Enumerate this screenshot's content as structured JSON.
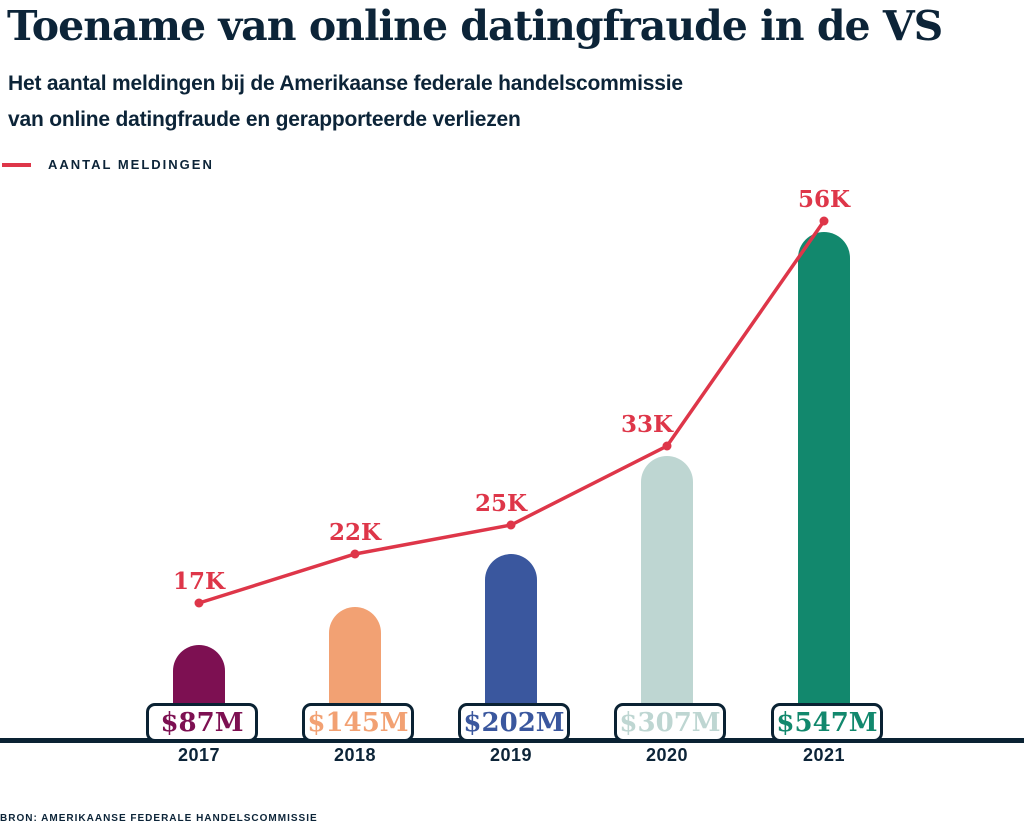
{
  "title": "Toename van online datingfraude in de VS",
  "subtitle_line1": "Het aantal meldingen bij de Amerikaanse federale handelscommissie",
  "subtitle_line2": "van online datingfraude en gerapporteerde verliezen",
  "legend": {
    "label": "AANTAL MELDINGEN",
    "line_color": "#DE3649"
  },
  "source": "BRON: AMERIKAANSE FEDERALE HANDELSCOMMISSIE",
  "colors": {
    "navy_text": "#0C2438",
    "axis": "#0A2233",
    "line_red": "#DE3649",
    "background": "#FFFFFF"
  },
  "chart_data": {
    "type": "bar",
    "title": "Toename van online datingfraude in de VS",
    "categories": [
      "2017",
      "2018",
      "2019",
      "2020",
      "2021"
    ],
    "series": [
      {
        "name": "Gerapporteerde verliezen",
        "type": "bar",
        "unit": "$M",
        "values": [
          87,
          145,
          202,
          307,
          547
        ],
        "labels": [
          "$87M",
          "$145M",
          "$202M",
          "$307M",
          "$547M"
        ],
        "bar_colors": [
          "#7D1052",
          "#F2A173",
          "#3A579E",
          "#BED6D2",
          "#12886D"
        ]
      },
      {
        "name": "AANTAL MELDINGEN",
        "type": "line",
        "unit": "K",
        "values": [
          17,
          22,
          25,
          33,
          56
        ],
        "labels": [
          "17K",
          "22K",
          "25K",
          "33K",
          "56K"
        ],
        "color": "#DE3649"
      }
    ],
    "legend_position": "top-left",
    "grid": false,
    "axis_line": true,
    "xlabel": "",
    "ylabel": ""
  }
}
